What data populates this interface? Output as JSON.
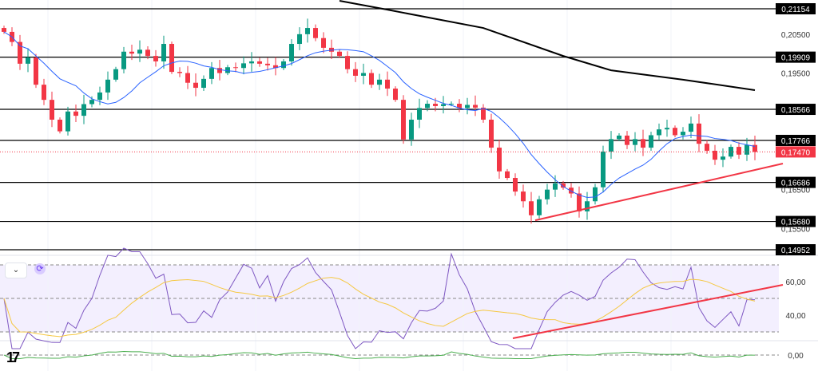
{
  "chart_data": {
    "type": "candlestick",
    "price_axis": {
      "min": 0.146,
      "max": 0.214,
      "ticks": [
        "0,20500",
        "0,19500",
        "0,16500",
        "0,15500"
      ],
      "tick_values": [
        0.205,
        0.195,
        0.165,
        0.155
      ]
    },
    "levels": [
      {
        "value": 0.21154,
        "label": "0,21154"
      },
      {
        "value": 0.19909,
        "label": "0,19909"
      },
      {
        "value": 0.18566,
        "label": "0,18566"
      },
      {
        "value": 0.17766,
        "label": "0,17766"
      },
      {
        "value": 0.16686,
        "label": "0,16686"
      },
      {
        "value": 0.1568,
        "label": "0,15680"
      },
      {
        "value": 0.14952,
        "label": "0,14952"
      }
    ],
    "last_price": {
      "value": 0.1747,
      "label": "0,17470"
    },
    "closes": [
      0.2056,
      0.203,
      0.1974,
      0.199,
      0.192,
      0.1881,
      0.183,
      0.18,
      0.1851,
      0.184,
      0.187,
      0.1881,
      0.19,
      0.1933,
      0.196,
      0.2005,
      0.2,
      0.201,
      0.1994,
      0.198,
      0.2025,
      0.1953,
      0.195,
      0.1925,
      0.1912,
      0.1935,
      0.1963,
      0.195,
      0.1965,
      0.1963,
      0.1975,
      0.198,
      0.1974,
      0.197,
      0.1963,
      0.198,
      0.2025,
      0.205,
      0.2066,
      0.204,
      0.2015,
      0.2005,
      0.1994,
      0.196,
      0.1943,
      0.195,
      0.192,
      0.1933,
      0.191,
      0.1881,
      0.1779,
      0.183,
      0.186,
      0.1871,
      0.1865,
      0.187,
      0.1871,
      0.186,
      0.1868,
      0.1861,
      0.183,
      0.1758,
      0.1697,
      0.168,
      0.1645,
      0.162,
      0.1584,
      0.1625,
      0.165,
      0.1666,
      0.1655,
      0.164,
      0.1594,
      0.162,
      0.1656,
      0.1748,
      0.178,
      0.1789,
      0.1765,
      0.178,
      0.1758,
      0.179,
      0.1805,
      0.1809,
      0.179,
      0.1799,
      0.182,
      0.1768,
      0.175,
      0.1727,
      0.1735,
      0.176,
      0.174,
      0.1765,
      0.1747
    ],
    "ma_long": [
      [
        42,
        0.2136
      ],
      [
        48,
        0.2113
      ],
      [
        60,
        0.2066
      ],
      [
        70,
        0.1994
      ],
      [
        76,
        0.1957
      ],
      [
        85,
        0.1933
      ],
      [
        94,
        0.1906
      ]
    ],
    "trendline": [
      [
        66.5,
        0.1571
      ],
      [
        97.5,
        0.1717
      ]
    ],
    "rsi": {
      "ticks": [
        "60,00",
        "40,00"
      ],
      "tick_values": [
        60,
        40
      ],
      "bands": [
        70,
        50,
        30
      ],
      "trendline": [
        [
          63.7,
          26.2
        ],
        [
          97.5,
          58.1
        ]
      ]
    },
    "oscillator": {
      "ticks": [
        "0,00"
      ],
      "tick_values": [
        0
      ]
    },
    "colors": {
      "up": "#089981",
      "down": "#f23645",
      "ma": "#2962ff",
      "rsi": "#7e57c2",
      "rsi_ma": "#f5c842",
      "trend": "#f23645"
    }
  },
  "ui": {
    "collapse": "⌄",
    "refresh": "⟳",
    "logo": "TV"
  }
}
